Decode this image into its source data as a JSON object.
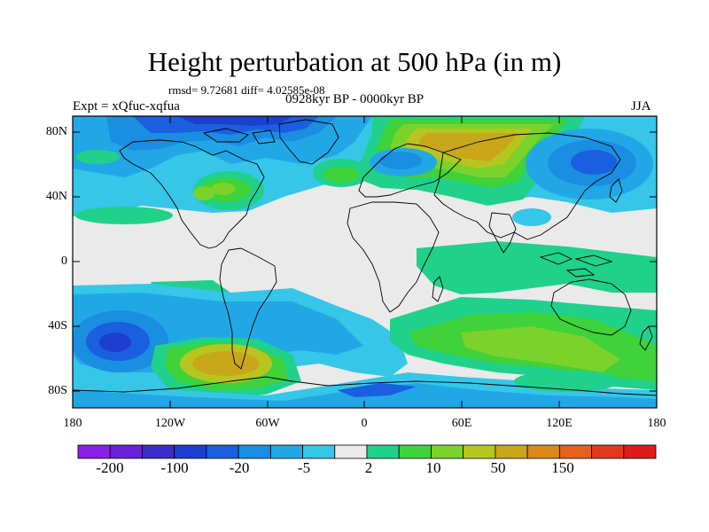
{
  "title": "Height perturbation at 500 hPa (in m)",
  "stats": "rmsd= 9.72681 diff= 4.02585e-08",
  "left_string": "Expt = xQfuc-xqfua",
  "center_string": "0928kyr BP - 0000kyr BP",
  "right_string": "JJA",
  "colors": {
    "levels": [
      "#8a1fe6",
      "#6a20d8",
      "#3a2ec8",
      "#1c3fd0",
      "#1a5fe0",
      "#1a8ee0",
      "#22a7e6",
      "#35c6e8",
      "#eaeaea",
      "#1fd18a",
      "#3fd23a",
      "#7ad22a",
      "#b7c61f",
      "#c9a61a",
      "#d98a1a",
      "#e5621c",
      "#e23a1e",
      "#e0191a"
    ],
    "coast": "#000000"
  },
  "axes": {
    "lat_labels": [
      "80N",
      "40N",
      "0",
      "40S",
      "80S"
    ],
    "lon_labels": [
      "180",
      "120W",
      "60W",
      "0",
      "60E",
      "120E",
      "180"
    ]
  },
  "colorbar": {
    "labels": [
      "-200",
      "-100",
      "-20",
      "-5",
      "2",
      "10",
      "50",
      "150"
    ]
  },
  "chart_data": {
    "type": "heatmap",
    "projection": "cylindrical-equidistant",
    "xlim": [
      -180,
      180
    ],
    "ylim": [
      -90,
      90
    ],
    "xticks": [
      -180,
      -120,
      -60,
      0,
      60,
      120,
      180
    ],
    "yticks": [
      80,
      40,
      0,
      -40,
      -80
    ]
  }
}
